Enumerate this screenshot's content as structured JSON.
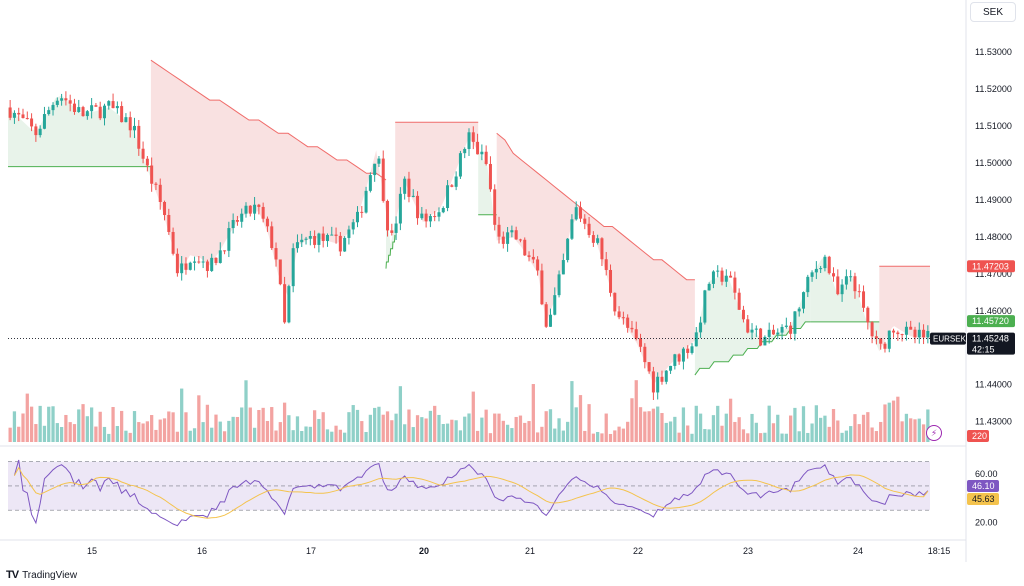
{
  "currency": "SEK",
  "brand": "TradingView",
  "brand_logo": "TV",
  "colors": {
    "up": "#26a69a",
    "down": "#ef5350",
    "stop_up": "#4caf50",
    "stop_down": "#f06c6a",
    "fill_up": "#e4f1e6",
    "fill_down": "#f8dcdc",
    "rsi": "#7e57c2",
    "rsi_ma": "#f4c34d",
    "rsi_band": "#ede7f6",
    "vol_up": "#8fd0c8",
    "vol_down": "#f3a3a1"
  },
  "chart_data": {
    "type": "candlestick",
    "symbol": "EURSEK",
    "x_ticks": [
      "15",
      "16",
      "17",
      "20",
      "21",
      "22",
      "23",
      "24",
      "18:15"
    ],
    "price_axis": {
      "ticks": [
        "11.53000",
        "11.52000",
        "11.51000",
        "11.50000",
        "11.49000",
        "11.48000",
        "11.47000",
        "11.46000",
        "11.45000",
        "11.44000",
        "11.43000"
      ],
      "range": [
        11.4245,
        11.5365
      ]
    },
    "last_price": "11.45248",
    "countdown": "42:15",
    "upper_stop_value": "11.47203",
    "lower_stop_value": "11.45720",
    "volume_label": "220",
    "rsi": {
      "ticks": [
        "60.00",
        "20.00"
      ],
      "value": "46.10",
      "ma_value": "45.63",
      "upper_band": 70,
      "lower_band": 30,
      "range": [
        12,
        78
      ]
    },
    "anchors": [
      {
        "t": 0,
        "p": 11.515
      },
      {
        "t": 0.03,
        "p": 11.508
      },
      {
        "t": 0.055,
        "p": 11.519
      },
      {
        "t": 0.08,
        "p": 11.513
      },
      {
        "t": 0.11,
        "p": 11.515
      },
      {
        "t": 0.135,
        "p": 11.51
      },
      {
        "t": 0.15,
        "p": 11.499
      },
      {
        "t": 0.17,
        "p": 11.486
      },
      {
        "t": 0.185,
        "p": 11.47
      },
      {
        "t": 0.2,
        "p": 11.476
      },
      {
        "t": 0.22,
        "p": 11.472
      },
      {
        "t": 0.25,
        "p": 11.485
      },
      {
        "t": 0.27,
        "p": 11.488
      },
      {
        "t": 0.29,
        "p": 11.476
      },
      {
        "t": 0.3,
        "p": 11.456
      },
      {
        "t": 0.31,
        "p": 11.477
      },
      {
        "t": 0.33,
        "p": 11.48
      },
      {
        "t": 0.36,
        "p": 11.478
      },
      {
        "t": 0.38,
        "p": 11.485
      },
      {
        "t": 0.4,
        "p": 11.504
      },
      {
        "t": 0.415,
        "p": 11.478
      },
      {
        "t": 0.43,
        "p": 11.495
      },
      {
        "t": 0.45,
        "p": 11.484
      },
      {
        "t": 0.47,
        "p": 11.488
      },
      {
        "t": 0.5,
        "p": 11.507
      },
      {
        "t": 0.52,
        "p": 11.499
      },
      {
        "t": 0.53,
        "p": 11.479
      },
      {
        "t": 0.55,
        "p": 11.48
      },
      {
        "t": 0.575,
        "p": 11.47
      },
      {
        "t": 0.585,
        "p": 11.455
      },
      {
        "t": 0.6,
        "p": 11.47
      },
      {
        "t": 0.615,
        "p": 11.488
      },
      {
        "t": 0.64,
        "p": 11.478
      },
      {
        "t": 0.66,
        "p": 11.46
      },
      {
        "t": 0.685,
        "p": 11.45
      },
      {
        "t": 0.7,
        "p": 11.44
      },
      {
        "t": 0.72,
        "p": 11.446
      },
      {
        "t": 0.745,
        "p": 11.452
      },
      {
        "t": 0.76,
        "p": 11.468
      },
      {
        "t": 0.78,
        "p": 11.47
      },
      {
        "t": 0.8,
        "p": 11.456
      },
      {
        "t": 0.82,
        "p": 11.452
      },
      {
        "t": 0.85,
        "p": 11.456
      },
      {
        "t": 0.87,
        "p": 11.469
      },
      {
        "t": 0.885,
        "p": 11.475
      },
      {
        "t": 0.9,
        "p": 11.464
      },
      {
        "t": 0.915,
        "p": 11.47
      },
      {
        "t": 0.93,
        "p": 11.458
      },
      {
        "t": 0.945,
        "p": 11.449
      },
      {
        "t": 0.96,
        "p": 11.456
      },
      {
        "t": 0.98,
        "p": 11.453
      },
      {
        "t": 1,
        "p": 11.45248
      }
    ],
    "stops": [
      {
        "from": 0,
        "to": 0.155,
        "level": 11.499,
        "side": "lower"
      },
      {
        "from": 0.155,
        "to": 0.41,
        "level": "descending",
        "start": 11.528,
        "end": 11.495,
        "side": "upper"
      },
      {
        "from": 0.41,
        "to": 0.42,
        "level": "rising",
        "start": 11.472,
        "end": 11.48,
        "side": "lower"
      },
      {
        "from": 0.42,
        "to": 0.51,
        "level": 11.511,
        "side": "upper"
      },
      {
        "from": 0.51,
        "to": 0.53,
        "level": 11.486,
        "side": "lower"
      },
      {
        "from": 0.53,
        "to": 0.745,
        "level": "descending",
        "start": 11.508,
        "end": 11.467,
        "side": "upper"
      },
      {
        "from": 0.745,
        "to": 0.87,
        "level": "rising",
        "start": 11.443,
        "end": 11.457,
        "side": "lower"
      },
      {
        "from": 0.87,
        "to": 0.945,
        "level": 11.457,
        "side": "lower"
      },
      {
        "from": 0.945,
        "to": 1,
        "level": 11.47203,
        "side": "upper"
      }
    ]
  }
}
